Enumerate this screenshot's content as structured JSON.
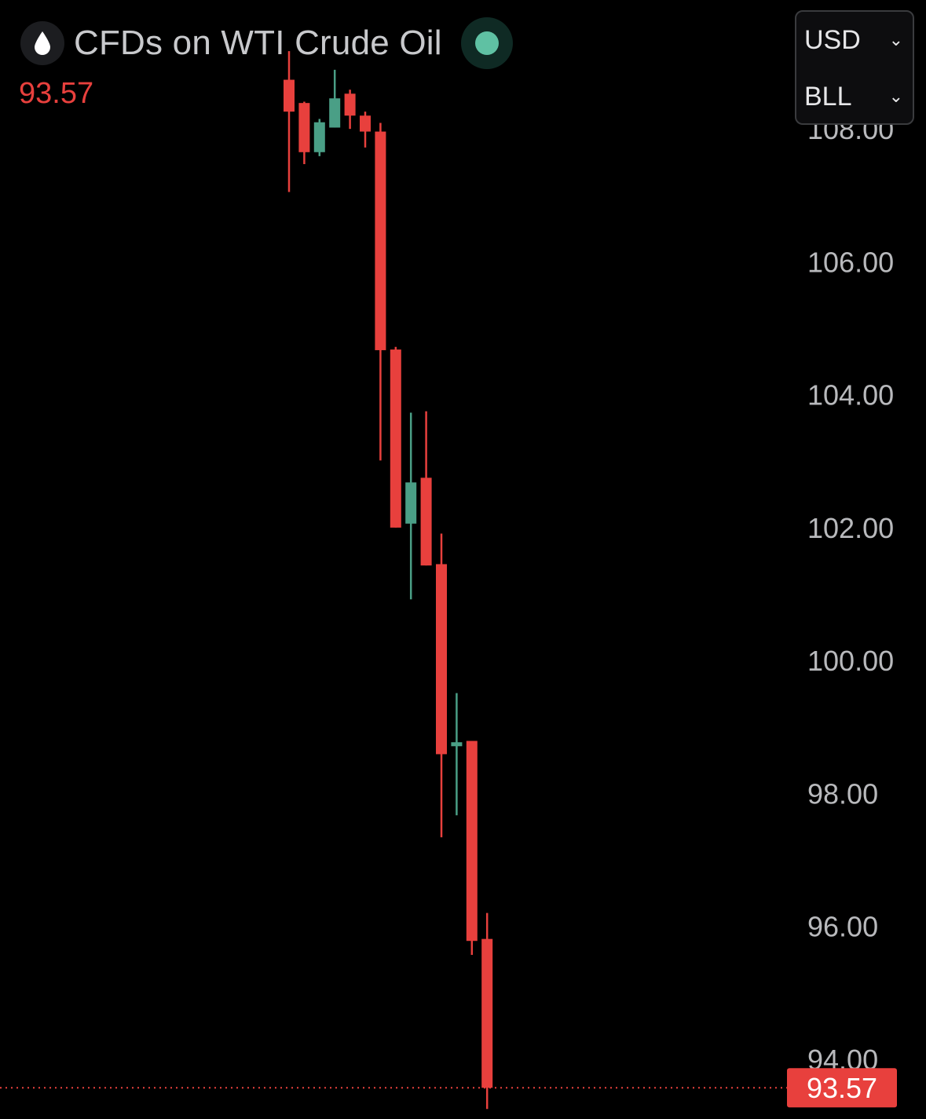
{
  "header": {
    "title": "CFDs on WTI Crude Oil",
    "icon": "oil-drop-icon",
    "status": "market-open-dot",
    "last_price": "93.57"
  },
  "selectors": [
    {
      "label": "USD",
      "icon": "chevron-down-icon"
    },
    {
      "label": "BLL",
      "icon": "chevron-down-icon"
    }
  ],
  "colors": {
    "up": "#4a9f86",
    "down": "#e8403d",
    "status": "#5fc1a3",
    "axis_text": "#b8b9bc",
    "background": "#000000"
  },
  "chart_data": {
    "type": "candlestick",
    "title": "CFDs on WTI Crude Oil",
    "ylim": [
      93.1,
      109.94
    ],
    "y_ticks": [
      "108.00",
      "106.00",
      "104.00",
      "102.00",
      "100.00",
      "98.00",
      "96.00",
      "94.00"
    ],
    "current_price": 93.57,
    "current_price_label": "93.57",
    "grid": false,
    "candles": [
      {
        "o": 108.74,
        "h": 109.17,
        "l": 107.05,
        "c": 108.26
      },
      {
        "o": 108.39,
        "h": 108.41,
        "l": 107.47,
        "c": 107.65
      },
      {
        "o": 107.65,
        "h": 108.15,
        "l": 107.59,
        "c": 108.1
      },
      {
        "o": 108.02,
        "h": 108.89,
        "l": 108.02,
        "c": 108.46
      },
      {
        "o": 108.53,
        "h": 108.59,
        "l": 108.0,
        "c": 108.2
      },
      {
        "o": 108.2,
        "h": 108.26,
        "l": 107.72,
        "c": 107.96
      },
      {
        "o": 107.96,
        "h": 108.09,
        "l": 103.01,
        "c": 104.67
      },
      {
        "o": 104.68,
        "h": 104.72,
        "l": 102.0,
        "c": 102.0
      },
      {
        "o": 102.06,
        "h": 103.73,
        "l": 100.92,
        "c": 102.68
      },
      {
        "o": 102.75,
        "h": 103.75,
        "l": 101.43,
        "c": 101.43
      },
      {
        "o": 101.45,
        "h": 101.91,
        "l": 97.34,
        "c": 98.59
      },
      {
        "o": 98.71,
        "h": 99.51,
        "l": 97.67,
        "c": 98.77
      },
      {
        "o": 98.79,
        "h": 98.79,
        "l": 95.57,
        "c": 95.78
      },
      {
        "o": 95.81,
        "h": 96.2,
        "l": 93.25,
        "c": 93.57
      }
    ]
  }
}
